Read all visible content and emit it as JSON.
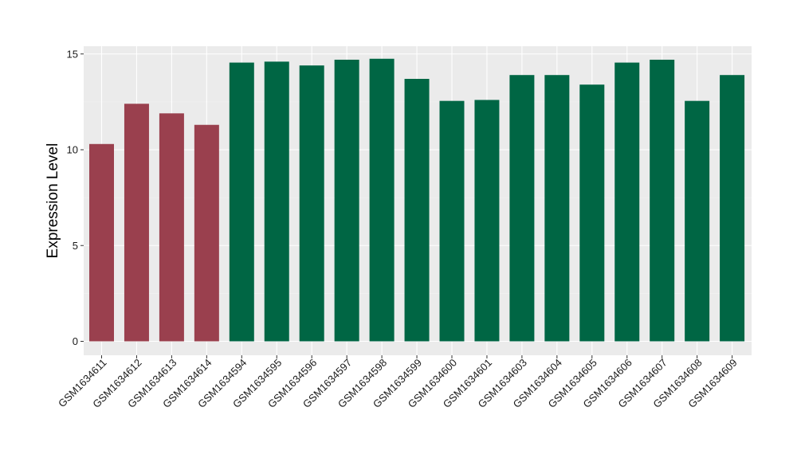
{
  "chart_data": {
    "type": "bar",
    "title": "",
    "xlabel": "",
    "ylabel": "Expression Level",
    "ylim": [
      0,
      15.5
    ],
    "yticks": [
      0,
      5,
      10,
      15
    ],
    "grid": true,
    "legend": "none",
    "colors": {
      "group_a": "#9a404e",
      "group_b": "#006644"
    },
    "categories": [
      "GSM1634611",
      "GSM1634612",
      "GSM1634613",
      "GSM1634614",
      "GSM1634594",
      "GSM1634595",
      "GSM1634596",
      "GSM1634597",
      "GSM1634598",
      "GSM1634599",
      "GSM1634600",
      "GSM1634601",
      "GSM1634603",
      "GSM1634604",
      "GSM1634605",
      "GSM1634606",
      "GSM1634607",
      "GSM1634608",
      "GSM1634609"
    ],
    "values": [
      10.3,
      12.4,
      11.9,
      11.3,
      14.55,
      14.6,
      14.4,
      14.7,
      14.75,
      13.7,
      12.55,
      12.6,
      13.9,
      13.9,
      13.4,
      14.55,
      14.7,
      12.55,
      13.9
    ],
    "groups": [
      "group_a",
      "group_a",
      "group_a",
      "group_a",
      "group_b",
      "group_b",
      "group_b",
      "group_b",
      "group_b",
      "group_b",
      "group_b",
      "group_b",
      "group_b",
      "group_b",
      "group_b",
      "group_b",
      "group_b",
      "group_b",
      "group_b"
    ]
  }
}
